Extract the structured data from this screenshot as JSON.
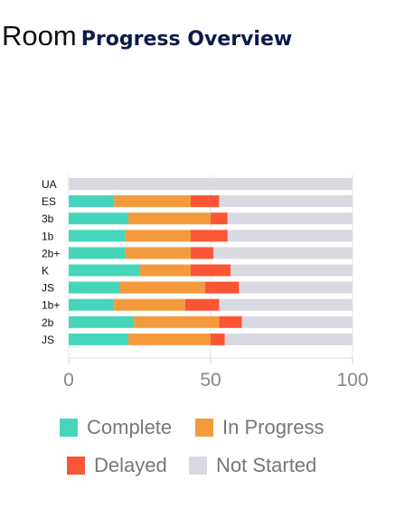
{
  "title": {
    "prefix": "Room",
    "main": "Progress Overview"
  },
  "colors": {
    "complete": "#45d5bb",
    "in_progress": "#f39a3c",
    "delayed": "#fa5535",
    "not_started": "#d9d9e2"
  },
  "chart_data": {
    "type": "bar",
    "orientation": "horizontal",
    "stacked": true,
    "categories": [
      "UA",
      "ES",
      "3b",
      "1b",
      "2b+",
      "K",
      "JS",
      "1b+",
      "2b",
      "JS"
    ],
    "series": [
      {
        "name": "Complete",
        "values": [
          0,
          16,
          21,
          20,
          20,
          25,
          18,
          16,
          23,
          21
        ]
      },
      {
        "name": "In Progress",
        "values": [
          0,
          27,
          29,
          23,
          23,
          18,
          30,
          25,
          30,
          29
        ]
      },
      {
        "name": "Delayed",
        "values": [
          0,
          10,
          6,
          13,
          8,
          14,
          12,
          12,
          8,
          5
        ]
      },
      {
        "name": "Not Started",
        "values": [
          100,
          47,
          44,
          44,
          49,
          43,
          40,
          47,
          39,
          45
        ]
      }
    ],
    "xlim": [
      0,
      100
    ],
    "xticks": [
      "0",
      "50",
      "100"
    ],
    "grid": true,
    "legend_position": "bottom"
  },
  "legend": {
    "items": [
      {
        "label": "Complete",
        "color_key": "complete"
      },
      {
        "label": "In Progress",
        "color_key": "in_progress"
      },
      {
        "label": "Delayed",
        "color_key": "delayed"
      },
      {
        "label": "Not Started",
        "color_key": "not_started"
      }
    ]
  }
}
